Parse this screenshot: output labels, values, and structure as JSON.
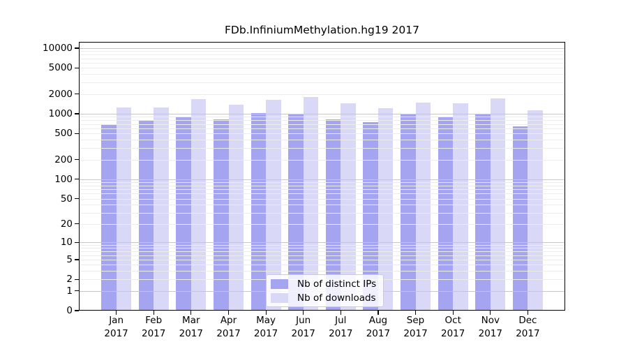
{
  "chart_data": {
    "type": "bar",
    "title": "FDb.InfiniumMethylation.hg19 2017",
    "categories": [
      "Jan 2017",
      "Feb 2017",
      "Mar 2017",
      "Apr 2017",
      "May 2017",
      "Jun 2017",
      "Jul 2017",
      "Aug 2017",
      "Sep 2017",
      "Oct 2017",
      "Nov 2017",
      "Dec 2017"
    ],
    "series": [
      {
        "name": "Nb of distinct IPs",
        "color": "#a4a4f0",
        "values": [
          680,
          775,
          915,
          820,
          1015,
          990,
          815,
          745,
          1005,
          875,
          990,
          650
        ]
      },
      {
        "name": "Nb of downloads",
        "color": "#d9d9f7",
        "values": [
          1255,
          1235,
          1660,
          1375,
          1645,
          1785,
          1455,
          1215,
          1490,
          1430,
          1715,
          1120
        ]
      }
    ],
    "y_axis": {
      "ticks": [
        0,
        1,
        2,
        5,
        10,
        20,
        50,
        100,
        200,
        500,
        1000,
        2000,
        5000,
        10000
      ],
      "scale": "log10(value+1)",
      "max": 15000
    },
    "grid": {
      "minor_color": "#ececec",
      "major_color": "#c6c6c6",
      "major_ticks": [
        1,
        10,
        100,
        1000,
        10000
      ]
    },
    "legend_position": "bottom-center",
    "background": "#ffffff"
  }
}
